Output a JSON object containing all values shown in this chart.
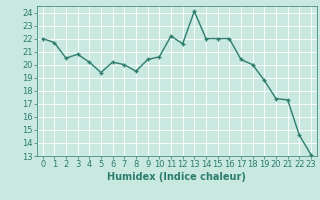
{
  "x": [
    0,
    1,
    2,
    3,
    4,
    5,
    6,
    7,
    8,
    9,
    10,
    11,
    12,
    13,
    14,
    15,
    16,
    17,
    18,
    19,
    20,
    21,
    22,
    23
  ],
  "y": [
    22,
    21.7,
    20.5,
    20.8,
    20.2,
    19.4,
    20.2,
    20.0,
    19.5,
    20.4,
    20.6,
    22.2,
    21.6,
    24.1,
    22.0,
    22.0,
    22.0,
    20.4,
    20.0,
    18.8,
    17.4,
    17.3,
    14.6,
    13.1
  ],
  "line_color": "#2d7d6e",
  "marker": "+",
  "marker_size": 3,
  "background_color": "#c8e8e0",
  "grid_color": "#ffffff",
  "xlabel": "Humidex (Indice chaleur)",
  "xlim": [
    -0.5,
    23.5
  ],
  "ylim": [
    13,
    24.5
  ],
  "yticks": [
    13,
    14,
    15,
    16,
    17,
    18,
    19,
    20,
    21,
    22,
    23,
    24
  ],
  "xticks": [
    0,
    1,
    2,
    3,
    4,
    5,
    6,
    7,
    8,
    9,
    10,
    11,
    12,
    13,
    14,
    15,
    16,
    17,
    18,
    19,
    20,
    21,
    22,
    23
  ],
  "xlabel_fontsize": 7,
  "tick_fontsize": 6,
  "line_width": 1.0,
  "label_color": "#2d7d6e",
  "spine_color": "#2d7d6e"
}
